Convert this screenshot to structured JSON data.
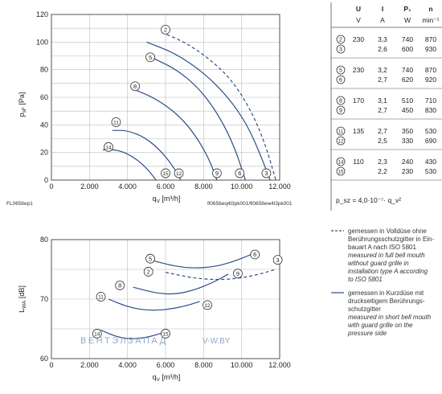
{
  "colors": {
    "curve": "#2b4e8c",
    "grid": "#bdbdbd",
    "frame": "#444444",
    "watermark": "#6a8bb8"
  },
  "labels": {
    "fig_id": "FL0656ep1",
    "curve_ids": "fl0656eq4l3pk001/fl0656ew4l3pk001",
    "top_ylabel_main": "p",
    "top_ylabel_sub": "sF",
    "top_ylabel_unit": " [Pa]",
    "bottom_ylabel_main": "L",
    "bottom_ylabel_sub": "WA",
    "bottom_ylabel_unit": " [dB]",
    "xlabel_main": "q",
    "xlabel_sub": "V",
    "xlabel_unit": " [m³/h]"
  },
  "table": {
    "header": [
      "U",
      "I",
      "P₁",
      "n"
    ],
    "units": [
      "V",
      "A",
      "W",
      "min⁻¹"
    ],
    "rows": [
      {
        "id": "2",
        "U": "230",
        "I": "3,3",
        "P": "740",
        "n": "870"
      },
      {
        "id": "3",
        "U": "",
        "I": "2,6",
        "P": "600",
        "n": "930"
      },
      {
        "id": "5",
        "U": "230",
        "I": "3,2",
        "P": "740",
        "n": "870"
      },
      {
        "id": "6",
        "U": "",
        "I": "2,7",
        "P": "620",
        "n": "920"
      },
      {
        "id": "8",
        "U": "170",
        "I": "3,1",
        "P": "510",
        "n": "710"
      },
      {
        "id": "9",
        "U": "",
        "I": "2,7",
        "P": "450",
        "n": "830"
      },
      {
        "id": "11",
        "U": "135",
        "I": "2,7",
        "P": "350",
        "n": "530"
      },
      {
        "id": "12",
        "U": "",
        "I": "2,5",
        "P": "330",
        "n": "690"
      },
      {
        "id": "14",
        "U": "110",
        "I": "2,3",
        "P": "240",
        "n": "430"
      },
      {
        "id": "15",
        "U": "",
        "I": "2,2",
        "P": "230",
        "n": "530"
      }
    ],
    "formula": "p_sz = 4,0·10⁻⁷· q_v²"
  },
  "legend": {
    "dashed": {
      "line1": "gemessen in Volldüse ohne",
      "line2": "Berührungsschutzgitter in Ein-",
      "line3": "bauart A nach ISO 5801",
      "line4": "measured in full bell mouth",
      "line5": "without guard grille in",
      "line6": "installation type A according",
      "line7": "to ISO 5801"
    },
    "solid": {
      "line1": "gemessen in Kurzdüse mit",
      "line2": "druckseitigem Berührungs-",
      "line3": "schutzgitter",
      "line4": "measured in short bell mouth",
      "line5": "with guard grille on the",
      "line6": "pressure side"
    }
  },
  "watermark": {
    "brand": "ВЕНТЭЛЗАПАД",
    "site": "V-W.BY"
  },
  "chart_data": [
    {
      "type": "line",
      "xlabel": "qv [m³/h]",
      "ylabel": "psF [Pa]",
      "xlim": [
        0,
        12000
      ],
      "ylim": [
        0,
        120
      ],
      "xticks": [
        0,
        2000,
        4000,
        6000,
        8000,
        10000,
        12000
      ],
      "xtick_labels": [
        "0",
        "2.000",
        "4.000",
        "6.000",
        "8.000",
        "10.000",
        "12.000"
      ],
      "yticks": [
        0,
        20,
        40,
        60,
        80,
        100,
        120
      ],
      "grid": true,
      "series": [
        {
          "name": "2",
          "style": "dashed",
          "x": [
            5800,
            7000,
            8200,
            9400,
            10400,
            11200,
            11800
          ],
          "y": [
            107,
            100,
            89,
            74,
            53,
            28,
            0
          ]
        },
        {
          "name": "3",
          "style": "solid",
          "x": [
            5000,
            6500,
            8000,
            9300,
            10300,
            11000,
            11500
          ],
          "y": [
            100,
            92,
            78,
            60,
            40,
            18,
            0
          ]
        },
        {
          "name": "5",
          "style": "solid",
          "x": [
            5400,
            6600,
            7800,
            8800,
            9600,
            10200
          ],
          "y": [
            88,
            80,
            66,
            47,
            25,
            0
          ]
        },
        {
          "name": "8",
          "style": "solid",
          "x": [
            4300,
            5500,
            6700,
            7600,
            8300,
            8700
          ],
          "y": [
            66,
            59,
            47,
            32,
            15,
            0
          ]
        },
        {
          "name": "11",
          "style": "solid",
          "x": [
            3200,
            4000,
            4900,
            5700,
            6400,
            6800
          ],
          "y": [
            36,
            36,
            31,
            22,
            10,
            0
          ]
        },
        {
          "name": "14",
          "style": "solid",
          "x": [
            2700,
            3500,
            4300,
            5000,
            5500
          ],
          "y": [
            22,
            22,
            17,
            9,
            0
          ]
        }
      ],
      "point_labels": [
        {
          "id": "2",
          "x": 6000,
          "y": 109
        },
        {
          "id": "5",
          "x": 5200,
          "y": 89
        },
        {
          "id": "8",
          "x": 4400,
          "y": 68
        },
        {
          "id": "11",
          "x": 3400,
          "y": 42
        },
        {
          "id": "14",
          "x": 3000,
          "y": 24
        },
        {
          "id": "15",
          "x": 6000,
          "y": 5
        },
        {
          "id": "12",
          "x": 6700,
          "y": 5
        },
        {
          "id": "9",
          "x": 8700,
          "y": 5
        },
        {
          "id": "6",
          "x": 9900,
          "y": 5
        },
        {
          "id": "3",
          "x": 11300,
          "y": 5
        }
      ]
    },
    {
      "type": "line",
      "xlabel": "qv [m³/h]",
      "ylabel": "LWA [dB]",
      "xlim": [
        0,
        12000
      ],
      "ylim": [
        60,
        80
      ],
      "xticks": [
        0,
        2000,
        4000,
        6000,
        8000,
        10000,
        12000
      ],
      "xtick_labels": [
        "0",
        "2.000",
        "4.000",
        "6.000",
        "8.000",
        "10.000",
        "12.000"
      ],
      "yticks": [
        60,
        70,
        80
      ],
      "grid": true,
      "series": [
        {
          "name": "6",
          "style": "solid",
          "x": [
            5300,
            6500,
            7500,
            8500,
            9500,
            10500
          ],
          "y": [
            76.5,
            75.5,
            75.2,
            75.4,
            76.2,
            77.5
          ]
        },
        {
          "name": "3",
          "style": "dashed",
          "x": [
            6000,
            7500,
            9000,
            10500,
            11800
          ],
          "y": [
            74.5,
            73.5,
            73.2,
            73.8,
            75.0
          ]
        },
        {
          "name": "9",
          "style": "solid",
          "x": [
            4300,
            5500,
            6500,
            7500,
            8500,
            9300
          ],
          "y": [
            72.0,
            71.0,
            70.8,
            71.5,
            72.8,
            74.2
          ]
        },
        {
          "name": "12",
          "style": "solid",
          "x": [
            3000,
            4000,
            5000,
            6000,
            7000,
            7800
          ],
          "y": [
            70.0,
            68.7,
            68.1,
            68.2,
            68.8,
            69.6
          ]
        },
        {
          "name": "15",
          "style": "solid",
          "x": [
            2600,
            3300,
            4000,
            4700,
            5300,
            5800
          ],
          "y": [
            64.8,
            63.8,
            63.3,
            63.4,
            63.8,
            64.3
          ]
        }
      ],
      "point_labels": [
        {
          "id": "5",
          "x": 5200,
          "y": 76.8
        },
        {
          "id": "6",
          "x": 10700,
          "y": 77.5
        },
        {
          "id": "3",
          "x": 11900,
          "y": 76.6
        },
        {
          "id": "2",
          "x": 5100,
          "y": 74.6
        },
        {
          "id": "9",
          "x": 9800,
          "y": 74.3
        },
        {
          "id": "8",
          "x": 3600,
          "y": 72.3
        },
        {
          "id": "11",
          "x": 2600,
          "y": 70.4
        },
        {
          "id": "12",
          "x": 8200,
          "y": 69.0
        },
        {
          "id": "14",
          "x": 2400,
          "y": 64.2
        },
        {
          "id": "15",
          "x": 6000,
          "y": 64.2
        }
      ]
    }
  ]
}
